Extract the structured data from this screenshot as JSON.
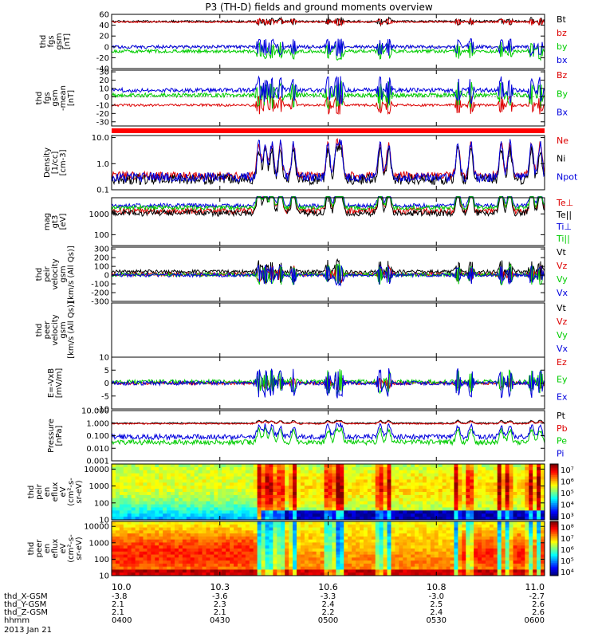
{
  "chart_data": {
    "type": "line",
    "title": "P3 (TH-D) fields and ground moments overview",
    "date": "2013 Jan 21",
    "x_ticks": [
      "10.0",
      "10.3",
      "10.6",
      "10.8",
      "11.0"
    ],
    "orbit_rows": [
      {
        "label": "thd_X-GSM",
        "values": [
          "-3.8",
          "-3.6",
          "-3.3",
          "-3.0",
          "-2.7"
        ]
      },
      {
        "label": "thd_Y-GSM",
        "values": [
          "2.1",
          "2.3",
          "2.4",
          "2.5",
          "2.6"
        ]
      },
      {
        "label": "thd_Z-GSM",
        "values": [
          "2.1",
          "2.1",
          "2.2",
          "2.4",
          "2.6"
        ]
      },
      {
        "label": "hhmm",
        "values": [
          "0400",
          "0430",
          "0500",
          "0530",
          "0600"
        ]
      }
    ],
    "panels": [
      {
        "id": "fgs-gsm",
        "ylabel": [
          "thd",
          "fgs",
          "gsm",
          "[nT]"
        ],
        "scale": "linear",
        "ylim": [
          -40,
          60
        ],
        "ticks": [
          "60",
          "40",
          "20",
          "0",
          "-20",
          "-40"
        ],
        "tick_values": [
          60,
          40,
          20,
          0,
          -20,
          -40
        ],
        "series": [
          {
            "name": "Bt",
            "color": "#000000",
            "base": 47,
            "noise": 2,
            "spike": 6
          },
          {
            "name": "bz",
            "color": "#dd0000",
            "base": 46,
            "noise": 1.5,
            "spike": 5
          },
          {
            "name": "by",
            "color": "#00cc00",
            "base": -8,
            "noise": 3,
            "spike": 14
          },
          {
            "name": "bx",
            "color": "#0000dd",
            "base": 0,
            "noise": 3,
            "spike": 14
          }
        ]
      },
      {
        "id": "fgs-gsm-detrended",
        "ylabel": [
          "thd",
          "fgs",
          "gsm",
          "-mean",
          "[nT]"
        ],
        "scale": "linear",
        "ylim": [
          -35,
          32
        ],
        "ticks": [
          "30",
          "20",
          "10",
          "0",
          "-10",
          "-20",
          "-30"
        ],
        "tick_values": [
          30,
          20,
          10,
          0,
          -10,
          -20,
          -30
        ],
        "series": [
          {
            "name": "Bz",
            "color": "#dd0000",
            "base": -10,
            "noise": 1.5,
            "spike": 10
          },
          {
            "name": "By",
            "color": "#00cc00",
            "base": 2,
            "noise": 2.5,
            "spike": 14
          },
          {
            "name": "Bx",
            "color": "#0000dd",
            "base": 8,
            "noise": 2.5,
            "spike": 14
          }
        ]
      },
      {
        "id": "density",
        "ylabel": [
          "Density",
          "[1/cc]",
          "[cm-3]"
        ],
        "scale": "log",
        "ylim": [
          0.1,
          12
        ],
        "ticks": [
          "10.0",
          "1.0",
          "0.1"
        ],
        "tick_values": [
          10,
          1,
          0.1
        ],
        "series": [
          {
            "name": "Ne",
            "color": "#dd0000",
            "base": 0.35,
            "noise": 0.15,
            "spike": 1.2
          },
          {
            "name": "Ni",
            "color": "#000000",
            "base": 0.25,
            "noise": 0.2,
            "spike": 1.3
          },
          {
            "name": "Npot",
            "color": "#0000dd",
            "base": 0.3,
            "noise": 0.18,
            "spike": 1.3
          }
        ]
      },
      {
        "id": "temperature",
        "ylabel": [
          "mag",
          "gt3",
          "[eV]"
        ],
        "scale": "log",
        "ylim": [
          30,
          6000
        ],
        "ticks": [
          "1000",
          "100"
        ],
        "tick_values": [
          1000,
          100
        ],
        "series": [
          {
            "name": "Te⊥",
            "color": "#dd0000",
            "base": 1400,
            "noise": 0.15,
            "spike": 1.2
          },
          {
            "name": "Te||",
            "color": "#000000",
            "base": 1100,
            "noise": 0.15,
            "spike": 1.2
          },
          {
            "name": "Ti⊥",
            "color": "#0000dd",
            "base": 2500,
            "noise": 0.1,
            "spike": 0.9
          },
          {
            "name": "Ti||",
            "color": "#00cc00",
            "base": 2000,
            "noise": 0.1,
            "spike": 0.9
          }
        ]
      },
      {
        "id": "peir-velocity",
        "ylabel": [
          "thd",
          "peir",
          "velocity",
          "gsm",
          "[km/s (All Qs)]"
        ],
        "scale": "linear",
        "ylim": [
          -300,
          320
        ],
        "ticks": [
          "300",
          "200",
          "100",
          "0",
          "-100",
          "-200",
          "-300"
        ],
        "tick_values": [
          300,
          200,
          100,
          0,
          -100,
          -200,
          -300
        ],
        "series": [
          {
            "name": "Vt",
            "color": "#000000",
            "base": 40,
            "noise": 20,
            "spike": 120
          },
          {
            "name": "Vz",
            "color": "#dd0000",
            "base": 10,
            "noise": 20,
            "spike": 80
          },
          {
            "name": "Vy",
            "color": "#00cc00",
            "base": 5,
            "noise": 20,
            "spike": 100
          },
          {
            "name": "Vx",
            "color": "#0000dd",
            "base": 0,
            "noise": 20,
            "spike": 100
          }
        ]
      },
      {
        "id": "peer-velocity",
        "ylabel": [
          "thd",
          "peer",
          "velocity",
          "gsm",
          "[km/s (All Qs)]"
        ],
        "scale": "linear",
        "ylim": [
          -1,
          1
        ],
        "ticks": [],
        "tick_values": [],
        "series": [
          {
            "name": "Vt",
            "color": "#000000",
            "hidden": true
          },
          {
            "name": "Vz",
            "color": "#dd0000",
            "hidden": true
          },
          {
            "name": "Vy",
            "color": "#00cc00",
            "hidden": true
          },
          {
            "name": "Vx",
            "color": "#0000dd",
            "hidden": true
          }
        ]
      },
      {
        "id": "efield",
        "ylabel": [
          "E=-VxB",
          "[mV/m]"
        ],
        "scale": "linear",
        "ylim": [
          -10,
          10
        ],
        "ticks": [
          "10",
          "5",
          "0",
          "-5",
          "-10"
        ],
        "tick_values": [
          10,
          5,
          0,
          -5,
          -10
        ],
        "series": [
          {
            "name": "Ez",
            "color": "#dd0000",
            "base": 0,
            "noise": 0.6,
            "spike": 2
          },
          {
            "name": "Ey",
            "color": "#00cc00",
            "base": 0.5,
            "noise": 0.8,
            "spike": 4
          },
          {
            "name": "Ex",
            "color": "#0000dd",
            "base": 0,
            "noise": 0.8,
            "spike": 5
          }
        ]
      },
      {
        "id": "pressure",
        "ylabel": [
          "Pressure",
          "[nPa]"
        ],
        "scale": "log",
        "ylim": [
          0.001,
          10
        ],
        "ticks": [
          "10.000",
          "1.000",
          "0.100",
          "0.010",
          "0.001"
        ],
        "tick_values": [
          10,
          1,
          0.1,
          0.01,
          0.001
        ],
        "series": [
          {
            "name": "Pt",
            "color": "#000000",
            "base": 1.0,
            "noise": 0.05,
            "spike": 0.2
          },
          {
            "name": "Pb",
            "color": "#dd0000",
            "base": 0.9,
            "noise": 0.05,
            "spike": 0.2
          },
          {
            "name": "Pe",
            "color": "#00cc00",
            "base": 0.03,
            "noise": 0.2,
            "spike": 1.0
          },
          {
            "name": "Pi",
            "color": "#0000dd",
            "base": 0.08,
            "noise": 0.2,
            "spike": 1.0
          }
        ]
      }
    ],
    "spectrograms": [
      {
        "id": "peir-eflux",
        "ylabel": [
          "thd",
          "peir",
          "en",
          "eflux",
          "eV",
          "(cm²-s-",
          "sr-eV)"
        ],
        "scale": "log",
        "ylim": [
          10,
          20000
        ],
        "ticks": [
          "10000",
          "1000",
          "100",
          "10"
        ],
        "tick_values": [
          10000,
          1000,
          100,
          10
        ],
        "colorbar_ticks": [
          "10⁷",
          "10⁶",
          "10⁵",
          "10⁴",
          "10³"
        ]
      },
      {
        "id": "peer-eflux",
        "ylabel": [
          "thd",
          "peer",
          "en",
          "eflux",
          "eV",
          "(cm²-s-",
          "sr-eV)"
        ],
        "scale": "log",
        "ylim": [
          10,
          20000
        ],
        "ticks": [
          "10000",
          "1000",
          "100",
          "10"
        ],
        "tick_values": [
          10000,
          1000,
          100,
          10
        ],
        "colorbar_ticks": [
          "10⁸",
          "10⁷",
          "10⁶",
          "10⁵",
          "10⁴"
        ]
      }
    ]
  }
}
